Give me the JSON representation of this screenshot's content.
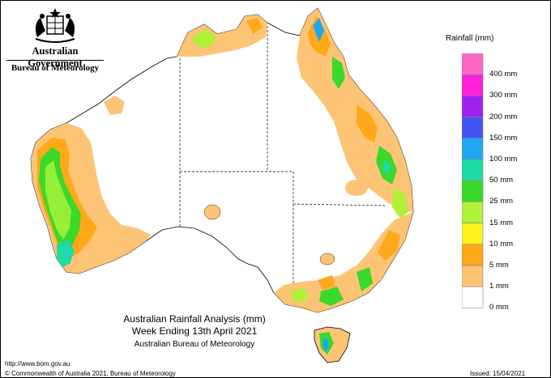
{
  "header": {
    "government_name": "Australian Government",
    "agency_name": "Bureau of Meteorology",
    "crest_icon": "coat-of-arms-icon"
  },
  "map": {
    "title": "Australian Rainfall Analysis (mm)",
    "period": "Week Ending 13th April 2021",
    "source": "Australian Bureau of Meteorology",
    "region_labels": []
  },
  "legend": {
    "title": "Rainfall (mm)",
    "classes": [
      {
        "label": "400 mm",
        "color": "#ff66c4"
      },
      {
        "label": "300 mm",
        "color": "#ff1fdc"
      },
      {
        "label": "200 mm",
        "color": "#a020f0"
      },
      {
        "label": "150 mm",
        "color": "#4355f2"
      },
      {
        "label": "100 mm",
        "color": "#1ea7f0"
      },
      {
        "label": "50 mm",
        "color": "#1fd9a6"
      },
      {
        "label": "25 mm",
        "color": "#3ad92a"
      },
      {
        "label": "15 mm",
        "color": "#aef23a"
      },
      {
        "label": "10 mm",
        "color": "#fff21a"
      },
      {
        "label": "5 mm",
        "color": "#ffa81a"
      },
      {
        "label": "1 mm",
        "color": "#fcc474"
      },
      {
        "label": "0 mm",
        "color": "#ffffff"
      }
    ]
  },
  "footer": {
    "url": "http://www.bom.gov.au",
    "copyright": "© Commonwealth of Australia 2021, Bureau of Meteorology",
    "issued": "Issued: 15/04/2021"
  }
}
